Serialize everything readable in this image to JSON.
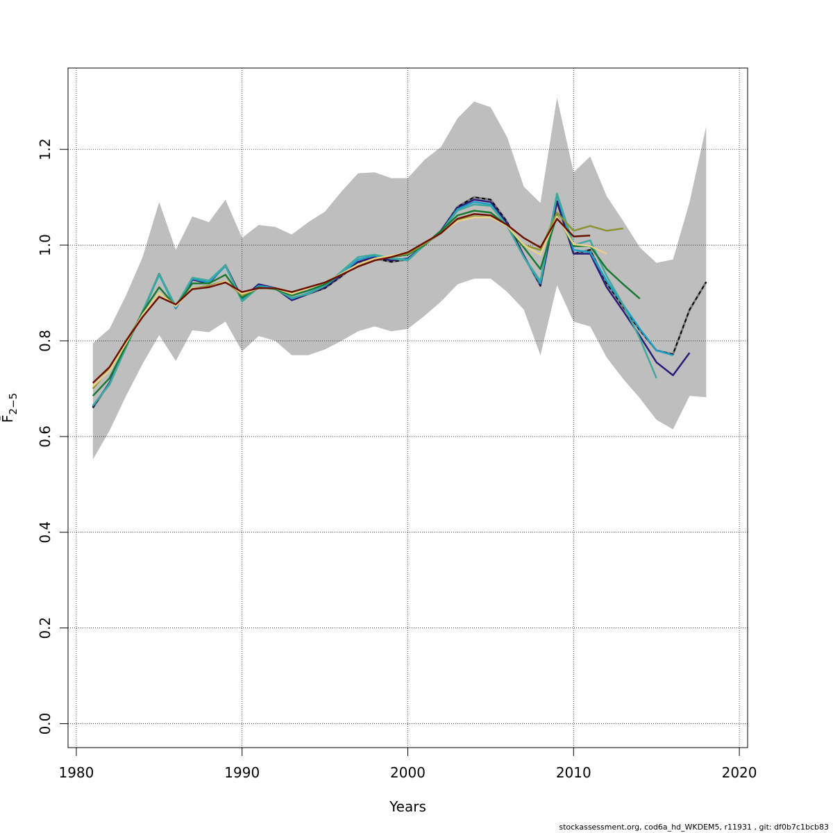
{
  "chart_data": {
    "type": "line",
    "title": "",
    "xlabel": "Years",
    "ylabel": "F̄2−5",
    "xlim": [
      1979.5,
      2020.5
    ],
    "ylim": [
      -0.05,
      1.37
    ],
    "x_ticks": [
      "1980",
      "1990",
      "2000",
      "2010",
      "2020"
    ],
    "y_ticks": [
      "0.0",
      "0.2",
      "0.4",
      "0.6",
      "0.8",
      "1.0",
      "1.2"
    ],
    "grid": true,
    "legend": "none",
    "band": {
      "fill": "#bebebe",
      "x": [
        1981,
        1982,
        1983,
        1984,
        1985,
        1986,
        1987,
        1988,
        1989,
        1990,
        1991,
        1992,
        1993,
        1994,
        1995,
        1996,
        1997,
        1998,
        1999,
        2000,
        2001,
        2002,
        2003,
        2004,
        2005,
        2006,
        2007,
        2008,
        2009,
        2010,
        2011,
        2012,
        2013,
        2014,
        2015,
        2016,
        2017,
        2018
      ],
      "upper": [
        0.795,
        0.825,
        0.895,
        0.975,
        1.09,
        0.99,
        1.06,
        1.048,
        1.095,
        1.015,
        1.042,
        1.038,
        1.022,
        1.048,
        1.07,
        1.112,
        1.15,
        1.152,
        1.14,
        1.14,
        1.178,
        1.205,
        1.265,
        1.3,
        1.288,
        1.225,
        1.122,
        1.088,
        1.308,
        1.152,
        1.185,
        1.102,
        1.05,
        0.995,
        0.963,
        0.97,
        1.09,
        1.248
      ],
      "lower": [
        0.552,
        0.612,
        0.685,
        0.752,
        0.812,
        0.758,
        0.822,
        0.818,
        0.84,
        0.778,
        0.81,
        0.8,
        0.77,
        0.77,
        0.782,
        0.8,
        0.82,
        0.83,
        0.82,
        0.825,
        0.852,
        0.882,
        0.918,
        0.93,
        0.93,
        0.902,
        0.865,
        0.77,
        0.916,
        0.84,
        0.83,
        0.765,
        0.72,
        0.68,
        0.635,
        0.615,
        0.685,
        0.682
      ]
    },
    "series": [
      {
        "color": "#000000",
        "dashed": true,
        "x": [
          1981,
          1982,
          1983,
          1984,
          1985,
          1986,
          1987,
          1988,
          1989,
          1990,
          1991,
          1992,
          1993,
          1994,
          1995,
          1996,
          1997,
          1998,
          1999,
          2000,
          2001,
          2002,
          2003,
          2004,
          2005,
          2006,
          2007,
          2008,
          2009,
          2010,
          2011,
          2012,
          2013,
          2014,
          2015,
          2016,
          2017,
          2018
        ],
        "values": [
          0.66,
          0.712,
          0.79,
          0.86,
          0.94,
          0.868,
          0.928,
          0.92,
          0.958,
          0.888,
          0.918,
          0.91,
          0.885,
          0.898,
          0.91,
          0.935,
          0.962,
          0.972,
          0.965,
          0.97,
          1.0,
          1.03,
          1.08,
          1.1,
          1.095,
          1.048,
          0.978,
          0.915,
          1.09,
          0.982,
          0.99,
          0.92,
          0.87,
          0.822,
          0.78,
          0.772,
          0.865,
          0.923
        ]
      },
      {
        "color": "#2b1a7a",
        "dashed": false,
        "x": [
          1981,
          1982,
          1983,
          1984,
          1985,
          1986,
          1987,
          1988,
          1989,
          1990,
          1991,
          1992,
          1993,
          1994,
          1995,
          1996,
          1997,
          1998,
          1999,
          2000,
          2001,
          2002,
          2003,
          2004,
          2005,
          2006,
          2007,
          2008,
          2009,
          2010,
          2011,
          2012,
          2013,
          2014,
          2015,
          2016,
          2017
        ],
        "values": [
          0.662,
          0.712,
          0.79,
          0.86,
          0.94,
          0.868,
          0.928,
          0.92,
          0.958,
          0.888,
          0.918,
          0.91,
          0.885,
          0.898,
          0.912,
          0.937,
          0.965,
          0.975,
          0.968,
          0.972,
          1.0,
          1.03,
          1.078,
          1.095,
          1.09,
          1.045,
          0.978,
          0.918,
          1.092,
          0.982,
          0.982,
          0.912,
          0.862,
          0.81,
          0.755,
          0.728,
          0.775
        ]
      },
      {
        "color": "#1aa0c8",
        "dashed": false,
        "x": [
          1981,
          1982,
          1983,
          1984,
          1985,
          1986,
          1987,
          1988,
          1989,
          1990,
          1991,
          1992,
          1993,
          1994,
          1995,
          1996,
          1997,
          1998,
          1999,
          2000,
          2001,
          2002,
          2003,
          2004,
          2005,
          2006,
          2007,
          2008,
          2009,
          2010,
          2011,
          2012,
          2013,
          2014,
          2015,
          2016
        ],
        "values": [
          0.664,
          0.71,
          0.788,
          0.86,
          0.938,
          0.868,
          0.93,
          0.922,
          0.956,
          0.885,
          0.915,
          0.91,
          0.888,
          0.9,
          0.915,
          0.94,
          0.97,
          0.978,
          0.972,
          0.97,
          1.0,
          1.028,
          1.075,
          1.09,
          1.085,
          1.04,
          0.975,
          0.92,
          1.105,
          0.99,
          0.985,
          0.925,
          0.875,
          0.825,
          0.78,
          0.77
        ]
      },
      {
        "color": "#40a89c",
        "dashed": false,
        "x": [
          1981,
          1982,
          1983,
          1984,
          1985,
          1986,
          1987,
          1988,
          1989,
          1990,
          1991,
          1992,
          1993,
          1994,
          1995,
          1996,
          1997,
          1998,
          1999,
          2000,
          2001,
          2002,
          2003,
          2004,
          2005,
          2006,
          2007,
          2008,
          2009,
          2010,
          2011,
          2012,
          2013,
          2014,
          2015
        ],
        "values": [
          0.665,
          0.708,
          0.786,
          0.862,
          0.94,
          0.872,
          0.932,
          0.926,
          0.958,
          0.882,
          0.912,
          0.908,
          0.89,
          0.898,
          0.915,
          0.945,
          0.975,
          0.98,
          0.972,
          0.968,
          1.0,
          1.028,
          1.072,
          1.085,
          1.082,
          1.04,
          0.975,
          0.925,
          1.108,
          1.0,
          1.01,
          0.935,
          0.875,
          0.805,
          0.722
        ]
      },
      {
        "color": "#187830",
        "dashed": false,
        "x": [
          1981,
          1982,
          1983,
          1984,
          1985,
          1986,
          1987,
          1988,
          1989,
          1990,
          1991,
          1992,
          1993,
          1994,
          1995,
          1996,
          1997,
          1998,
          1999,
          2000,
          2001,
          2002,
          2003,
          2004,
          2005,
          2006,
          2007,
          2008,
          2009,
          2010,
          2011,
          2012,
          2013,
          2014
        ],
        "values": [
          0.685,
          0.722,
          0.79,
          0.86,
          0.912,
          0.872,
          0.92,
          0.92,
          0.938,
          0.89,
          0.912,
          0.908,
          0.895,
          0.905,
          0.918,
          0.94,
          0.96,
          0.972,
          0.975,
          0.98,
          1.0,
          1.03,
          1.062,
          1.072,
          1.068,
          1.04,
          0.995,
          0.95,
          1.062,
          0.998,
          0.998,
          0.95,
          0.918,
          0.888
        ]
      },
      {
        "color": "#8c9430",
        "dashed": false,
        "x": [
          1981,
          1982,
          1983,
          1984,
          1985,
          1986,
          1987,
          1988,
          1989,
          1990,
          1991,
          1992,
          1993,
          1994,
          1995,
          1996,
          1997,
          1998,
          1999,
          2000,
          2001,
          2002,
          2003,
          2004,
          2005,
          2006,
          2007,
          2008,
          2009,
          2010,
          2011,
          2012,
          2013
        ],
        "values": [
          0.7,
          0.742,
          0.8,
          0.855,
          0.9,
          0.875,
          0.91,
          0.915,
          0.925,
          0.895,
          0.91,
          0.91,
          0.9,
          0.91,
          0.922,
          0.94,
          0.958,
          0.97,
          0.975,
          0.982,
          1.002,
          1.025,
          1.052,
          1.06,
          1.058,
          1.04,
          1.0,
          0.99,
          1.068,
          1.03,
          1.04,
          1.03,
          1.035
        ]
      },
      {
        "color": "#e8d28a",
        "dashed": false,
        "x": [
          1981,
          1982,
          1983,
          1984,
          1985,
          1986,
          1987,
          1988,
          1989,
          1990,
          1991,
          1992,
          1993,
          1994,
          1995,
          1996,
          1997,
          1998,
          1999,
          2000,
          2001,
          2002,
          2003,
          2004,
          2005,
          2006,
          2007,
          2008,
          2009,
          2010,
          2011,
          2012
        ],
        "values": [
          0.705,
          0.738,
          0.795,
          0.855,
          0.9,
          0.872,
          0.91,
          0.912,
          0.925,
          0.898,
          0.91,
          0.91,
          0.898,
          0.91,
          0.922,
          0.94,
          0.96,
          0.972,
          0.978,
          0.985,
          1.005,
          1.025,
          1.05,
          1.058,
          1.058,
          1.04,
          1.0,
          0.98,
          1.06,
          1.002,
          0.998,
          0.982
        ]
      },
      {
        "color": "#6b0f00",
        "dashed": false,
        "x": [
          1981,
          1982,
          1983,
          1984,
          1985,
          1986,
          1987,
          1988,
          1989,
          1990,
          1991,
          1992,
          1993,
          1994,
          1995,
          1996,
          1997,
          1998,
          1999,
          2000,
          2001,
          2002,
          2003,
          2004,
          2005,
          2006,
          2007,
          2008,
          2009,
          2010,
          2011
        ],
        "values": [
          0.712,
          0.745,
          0.8,
          0.85,
          0.892,
          0.876,
          0.908,
          0.912,
          0.922,
          0.902,
          0.91,
          0.91,
          0.902,
          0.912,
          0.922,
          0.938,
          0.955,
          0.968,
          0.975,
          0.985,
          1.005,
          1.025,
          1.055,
          1.065,
          1.062,
          1.042,
          1.015,
          0.995,
          1.055,
          1.018,
          1.02
        ]
      }
    ]
  },
  "footer": {
    "text": "stockassessment.org, cod6a_hd_WKDEM5, r11931 , git: df0b7c1bcb83"
  }
}
